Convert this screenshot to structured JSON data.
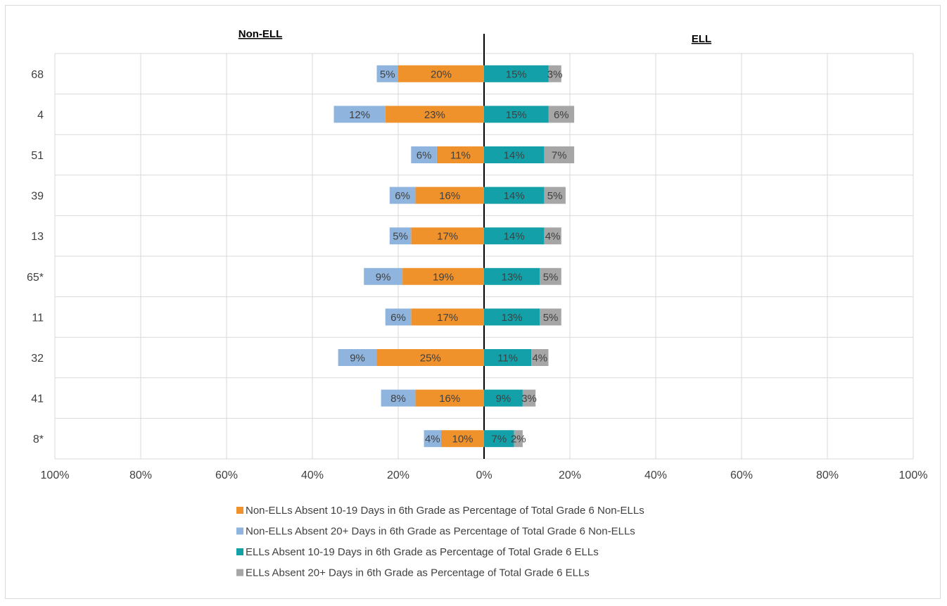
{
  "chart_data": {
    "type": "bar",
    "orientation": "horizontal-diverging",
    "left_header": "Non-ELL",
    "right_header": "ELL",
    "categories": [
      "68",
      "4",
      "51",
      "39",
      "13",
      "65*",
      "11",
      "32",
      "41",
      "8*"
    ],
    "x_tick_labels": [
      "100%",
      "80%",
      "60%",
      "40%",
      "20%",
      "0%",
      "20%",
      "40%",
      "60%",
      "80%",
      "100%"
    ],
    "xlim": [
      -100,
      100
    ],
    "grid": true,
    "legend_position": "bottom",
    "series": [
      {
        "name": "Non-ELLs Absent 10-19 Days in 6th Grade as Percentage of Total Grade 6 Non-ELLs",
        "side": "left",
        "color": "#f0922b",
        "values": [
          20,
          23,
          11,
          16,
          17,
          19,
          17,
          25,
          16,
          10
        ],
        "labels": [
          "20%",
          "23%",
          "11%",
          "16%",
          "17%",
          "19%",
          "17%",
          "25%",
          "16%",
          "10%"
        ]
      },
      {
        "name": "Non-ELLs Absent 20+ Days in 6th Grade as Percentage of Total Grade 6 Non-ELLs",
        "side": "left",
        "color": "#8fb5de",
        "values": [
          5,
          12,
          6,
          6,
          5,
          9,
          6,
          9,
          8,
          4
        ],
        "labels": [
          "5%",
          "12%",
          "6%",
          "6%",
          "5%",
          "9%",
          "6%",
          "9%",
          "8%",
          "4%"
        ]
      },
      {
        "name": "ELLs Absent 10-19 Days in 6th Grade as Percentage of Total Grade 6 ELLs",
        "side": "right",
        "color": "#14a0a8",
        "values": [
          15,
          15,
          14,
          14,
          14,
          13,
          13,
          11,
          9,
          7
        ],
        "labels": [
          "15%",
          "15%",
          "14%",
          "14%",
          "14%",
          "13%",
          "13%",
          "11%",
          "9%",
          "7%"
        ]
      },
      {
        "name": "ELLs Absent 20+ Days in 6th Grade as Percentage of Total Grade 6 ELLs",
        "side": "right",
        "color": "#a6a6a6",
        "values": [
          3,
          6,
          7,
          5,
          4,
          5,
          5,
          4,
          3,
          2
        ],
        "labels": [
          "3%",
          "6%",
          "7%",
          "5%",
          "4%",
          "5%",
          "5%",
          "4%",
          "3%",
          "2%"
        ]
      }
    ]
  }
}
